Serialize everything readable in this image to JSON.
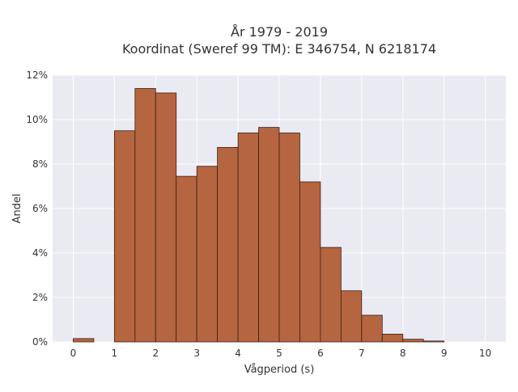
{
  "chart_data": {
    "type": "bar",
    "title_line1": "År 1979 - 2019",
    "title_line2": "Koordinat (Sweref 99 TM): E 346754, N 6218174",
    "xlabel": "Vågperiod (s)",
    "ylabel": "Andel",
    "xlim": [
      -0.5,
      10.5
    ],
    "ylim": [
      0,
      12
    ],
    "x_ticks": [
      0,
      1,
      2,
      3,
      4,
      5,
      6,
      7,
      8,
      9,
      10
    ],
    "y_ticks": [
      0,
      2,
      4,
      6,
      8,
      10,
      12
    ],
    "y_tick_suffix": "%",
    "bin_width": 0.5,
    "bins": [
      {
        "x0": 0.0,
        "value": 0.15
      },
      {
        "x0": 0.5,
        "value": 0.0
      },
      {
        "x0": 1.0,
        "value": 9.5
      },
      {
        "x0": 1.5,
        "value": 11.4
      },
      {
        "x0": 2.0,
        "value": 11.2
      },
      {
        "x0": 2.5,
        "value": 7.45
      },
      {
        "x0": 3.0,
        "value": 7.9
      },
      {
        "x0": 3.5,
        "value": 8.75
      },
      {
        "x0": 4.0,
        "value": 9.4
      },
      {
        "x0": 4.5,
        "value": 9.65
      },
      {
        "x0": 5.0,
        "value": 9.4
      },
      {
        "x0": 5.5,
        "value": 7.2
      },
      {
        "x0": 6.0,
        "value": 4.25
      },
      {
        "x0": 6.5,
        "value": 2.3
      },
      {
        "x0": 7.0,
        "value": 1.2
      },
      {
        "x0": 7.5,
        "value": 0.35
      },
      {
        "x0": 8.0,
        "value": 0.12
      },
      {
        "x0": 8.5,
        "value": 0.04
      }
    ],
    "grid": true,
    "colors": {
      "plot_bg": "#eaeaf2",
      "grid": "#ffffff",
      "bar_fill": "#b5653f",
      "bar_stroke": "#3a2216"
    }
  }
}
